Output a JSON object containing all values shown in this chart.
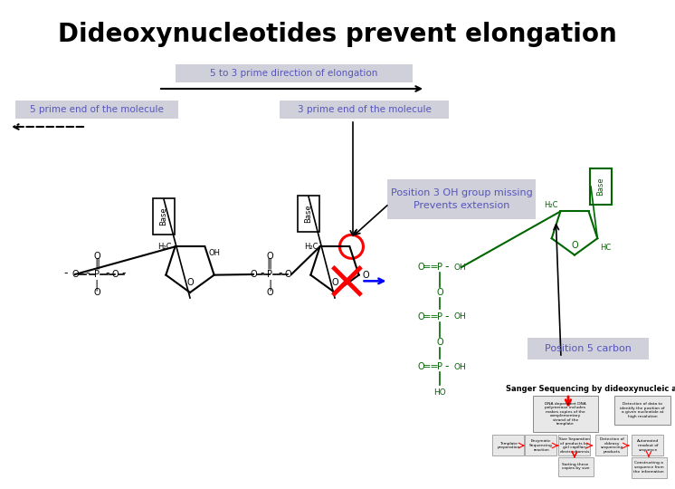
{
  "title": "Dideoxynucleotides prevent elongation",
  "title_fontsize": 20,
  "title_color": "#000000",
  "bg_color": "#ffffff",
  "direction_label": "5 to 3 prime direction of elongation",
  "five_prime_label": "5 prime end of the molecule",
  "three_prime_label": "3 prime end of the molecule",
  "position3_label": "Position 3 OH group missing\nPrevents extension",
  "position5_label": "Position 5 carbon",
  "sanger_title": "Sanger Sequencing by dideoxynucleic acid",
  "label_color_blue": "#5555bb",
  "label_color_green": "#006600",
  "annotation_bg": "#d0d0da",
  "green_color": "#006600"
}
